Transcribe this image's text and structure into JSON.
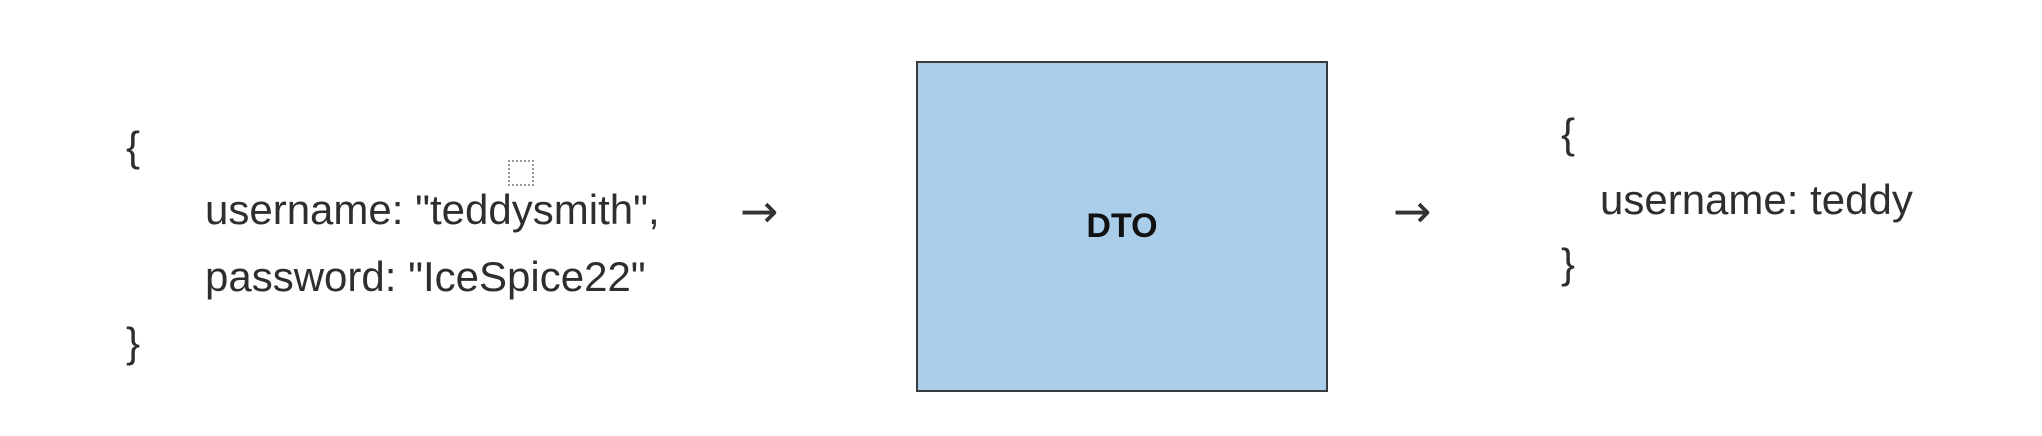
{
  "input_json": {
    "open_brace": "{",
    "line1": "username: \"teddysmith\",",
    "line2": "password: \"IceSpice22\"",
    "close_brace": "}"
  },
  "arrow_left": "→",
  "dto": {
    "label": "DTO",
    "fill_color": "#aacdea"
  },
  "arrow_right": "→",
  "output_json": {
    "open_brace": "{",
    "line1": "username: teddy",
    "close_brace": "}"
  }
}
